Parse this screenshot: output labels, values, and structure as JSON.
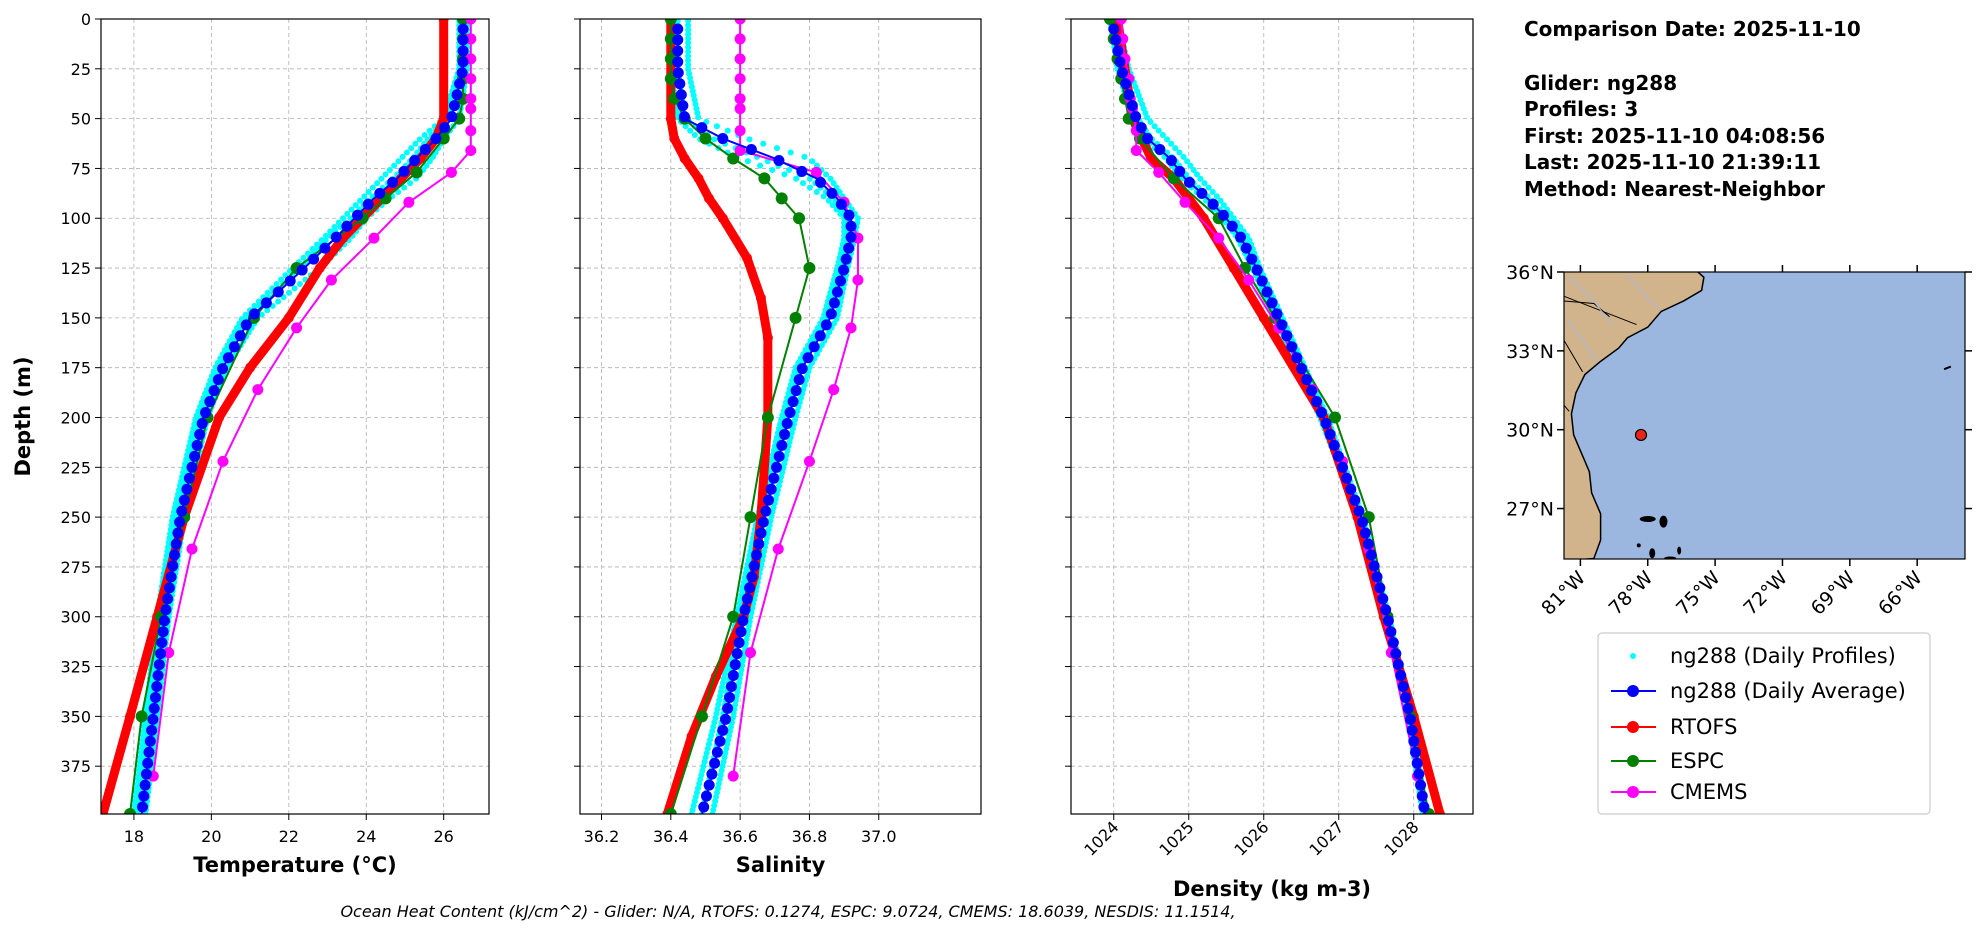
{
  "info": {
    "comparison_date": "Comparison Date: 2025-11-10",
    "glider": "Glider: ng288",
    "profiles": "Profiles: 3",
    "first": "First: 2025-11-10 04:08:56",
    "last": "Last: 2025-11-10 21:39:11",
    "method": "Method: Nearest-Neighbor"
  },
  "caption": "Ocean Heat Content (kJ/cm^2) - Glider: N/A,  RTOFS: 0.1274,  ESPC: 9.0724,  CMEMS: 18.6039,  NESDIS: 11.1514,",
  "legend": [
    {
      "label": "ng288 (Daily Profiles)",
      "color": "#00ffff",
      "style": "dots"
    },
    {
      "label": "ng288 (Daily Average)",
      "color": "#0000ff",
      "style": "line-marker"
    },
    {
      "label": "RTOFS",
      "color": "#ff0000",
      "style": "line-marker"
    },
    {
      "label": "ESPC",
      "color": "#008000",
      "style": "line-marker"
    },
    {
      "label": "CMEMS",
      "color": "#ff00ff",
      "style": "line-marker"
    }
  ],
  "map": {
    "lat_ticks": [
      {
        "v": 36,
        "label": "36°N"
      },
      {
        "v": 33,
        "label": "33°N"
      },
      {
        "v": 30,
        "label": "30°N"
      },
      {
        "v": 27,
        "label": "27°N"
      }
    ],
    "lon_ticks": [
      {
        "v": -81,
        "label": "81°W"
      },
      {
        "v": -78,
        "label": "78°W"
      },
      {
        "v": -75,
        "label": "75°W"
      },
      {
        "v": -72,
        "label": "72°W"
      },
      {
        "v": -69,
        "label": "69°W"
      },
      {
        "v": -66,
        "label": "66°W"
      }
    ],
    "lon_range": [
      -81.73,
      -63.87
    ],
    "lat_range": [
      25.08,
      36.0
    ],
    "glider_position": {
      "lon": -78.3,
      "lat": 29.8
    },
    "ocean_color": "#9bb7e0",
    "land_color": "#d2b48c",
    "marker_color": "#e8251c"
  },
  "chart_data": [
    {
      "type": "line",
      "id": "temperature",
      "xlabel": "Temperature (°C)",
      "ylabel": "Depth (m)",
      "xlim": [
        17.15,
        27.17
      ],
      "ylim": [
        399,
        0
      ],
      "xticks": [
        18,
        20,
        22,
        24,
        26
      ],
      "yticks": [
        0,
        25,
        50,
        75,
        100,
        125,
        150,
        175,
        200,
        225,
        250,
        275,
        300,
        325,
        350,
        375
      ],
      "grid": true,
      "profiles_depth": [
        0,
        25,
        50,
        60,
        70,
        80,
        90,
        100,
        110,
        125,
        150,
        175,
        200,
        250,
        300,
        350,
        399
      ],
      "profiles": [
        [
          26.6,
          26.6,
          26.4,
          26.0,
          25.7,
          25.3,
          24.6,
          24.0,
          23.6,
          22.8,
          21.2,
          20.4,
          19.9,
          19.3,
          18.9,
          18.6,
          18.3
        ],
        [
          26.5,
          26.5,
          26.1,
          25.6,
          25.2,
          24.7,
          24.1,
          23.6,
          23.0,
          22.3,
          20.9,
          20.2,
          19.7,
          19.1,
          18.7,
          18.4,
          18.1
        ],
        [
          26.4,
          26.4,
          26.0,
          25.4,
          24.9,
          24.4,
          23.9,
          23.4,
          22.9,
          22.1,
          20.8,
          20.1,
          19.6,
          19.0,
          18.6,
          18.3,
          18.0
        ]
      ],
      "series": [
        {
          "name": "ng288 (Daily Average)",
          "depth": [
            5,
            25,
            50,
            60,
            70,
            80,
            90,
            100,
            110,
            125,
            150,
            175,
            200,
            250,
            300,
            350,
            399
          ],
          "values": [
            26.5,
            26.5,
            26.2,
            25.8,
            25.3,
            24.8,
            24.2,
            23.7,
            23.2,
            22.4,
            21.0,
            20.3,
            19.8,
            19.2,
            18.8,
            18.5,
            18.2
          ]
        },
        {
          "name": "RTOFS",
          "depth": [
            0,
            50,
            60,
            70,
            80,
            90,
            100,
            110,
            125,
            150,
            175,
            200,
            250,
            300,
            350,
            399
          ],
          "values": [
            26.0,
            26.0,
            25.8,
            25.4,
            24.9,
            24.4,
            23.9,
            23.4,
            22.8,
            22.0,
            21.0,
            20.2,
            19.3,
            18.6,
            17.9,
            17.2
          ]
        },
        {
          "name": "ESPC",
          "depth": [
            0,
            10,
            20,
            30,
            40,
            50,
            60,
            77,
            90,
            100,
            125,
            150,
            200,
            250,
            300,
            350,
            399
          ],
          "values": [
            26.5,
            26.5,
            26.5,
            26.5,
            26.5,
            26.4,
            26.0,
            25.3,
            24.5,
            23.9,
            22.2,
            21.1,
            19.9,
            19.3,
            18.7,
            18.2,
            17.9
          ]
        },
        {
          "name": "CMEMS",
          "depth": [
            0,
            10,
            20,
            30,
            40,
            45,
            56,
            66,
            77,
            92,
            110,
            131,
            155,
            186,
            222,
            266,
            318,
            380
          ],
          "values": [
            26.7,
            26.7,
            26.7,
            26.7,
            26.7,
            26.7,
            26.7,
            26.7,
            26.2,
            25.1,
            24.2,
            23.1,
            22.2,
            21.2,
            20.3,
            19.5,
            18.9,
            18.5
          ]
        }
      ]
    },
    {
      "type": "line",
      "id": "salinity",
      "xlabel": "Salinity",
      "ylabel": "",
      "xlim": [
        36.138,
        37.295
      ],
      "ylim": [
        399,
        0
      ],
      "xticks": [
        36.2,
        36.4,
        36.6,
        36.8,
        37.0
      ],
      "xtick_labels": [
        "36.2",
        "36.4",
        "36.6",
        "36.8",
        "37.0"
      ],
      "yticks": [
        0,
        25,
        50,
        75,
        100,
        125,
        150,
        175,
        200,
        225,
        250,
        275,
        300,
        325,
        350,
        375
      ],
      "grid": true,
      "profiles_depth": [
        0,
        25,
        50,
        60,
        70,
        80,
        90,
        100,
        110,
        125,
        150,
        175,
        200,
        250,
        300,
        350,
        399
      ],
      "profiles": [
        [
          36.45,
          36.45,
          36.48,
          36.62,
          36.8,
          36.86,
          36.9,
          36.94,
          36.93,
          36.91,
          36.88,
          36.8,
          36.76,
          36.69,
          36.63,
          36.58,
          36.52
        ],
        [
          36.42,
          36.42,
          36.44,
          36.52,
          36.66,
          36.8,
          36.87,
          36.91,
          36.91,
          36.89,
          36.85,
          36.77,
          36.73,
          36.66,
          36.6,
          36.55,
          36.49
        ],
        [
          36.4,
          36.4,
          36.42,
          36.48,
          36.6,
          36.76,
          36.85,
          36.9,
          36.9,
          36.88,
          36.84,
          36.76,
          36.72,
          36.65,
          36.59,
          36.53,
          36.46
        ]
      ],
      "series": [
        {
          "name": "ng288 (Daily Average)",
          "depth": [
            5,
            25,
            50,
            60,
            70,
            80,
            90,
            100,
            110,
            125,
            150,
            175,
            200,
            250,
            300,
            350,
            399
          ],
          "values": [
            36.42,
            36.42,
            36.44,
            36.55,
            36.7,
            36.82,
            36.88,
            36.92,
            36.92,
            36.9,
            36.86,
            36.78,
            36.74,
            36.67,
            36.61,
            36.56,
            36.49
          ]
        },
        {
          "name": "RTOFS",
          "depth": [
            0,
            50,
            60,
            70,
            80,
            90,
            100,
            120,
            140,
            160,
            200,
            250,
            280,
            300,
            330,
            360,
            399
          ],
          "values": [
            36.4,
            36.4,
            36.41,
            36.44,
            36.48,
            36.51,
            36.55,
            36.62,
            36.66,
            36.68,
            36.68,
            36.66,
            36.64,
            36.61,
            36.53,
            36.46,
            36.39
          ]
        },
        {
          "name": "ESPC",
          "depth": [
            0,
            10,
            20,
            30,
            40,
            50,
            60,
            70,
            80,
            90,
            100,
            125,
            150,
            200,
            250,
            300,
            350,
            399
          ],
          "values": [
            36.4,
            36.4,
            36.4,
            36.4,
            36.41,
            36.44,
            36.5,
            36.58,
            36.67,
            36.72,
            36.77,
            36.8,
            36.76,
            36.68,
            36.63,
            36.58,
            36.49,
            36.4
          ]
        },
        {
          "name": "CMEMS",
          "depth": [
            0,
            10,
            20,
            30,
            40,
            45,
            56,
            66,
            77,
            92,
            110,
            131,
            155,
            186,
            222,
            266,
            318,
            380
          ],
          "values": [
            36.6,
            36.6,
            36.6,
            36.6,
            36.6,
            36.6,
            36.6,
            36.6,
            36.82,
            36.9,
            36.94,
            36.94,
            36.92,
            36.87,
            36.8,
            36.71,
            36.63,
            36.58
          ]
        }
      ]
    },
    {
      "type": "line",
      "id": "density",
      "xlabel": "Density (kg m-3)",
      "ylabel": "",
      "xlim": [
        1023.43,
        1028.79
      ],
      "ylim": [
        399,
        0
      ],
      "xticks": [
        1024,
        1025,
        1026,
        1027,
        1028
      ],
      "yticks": [
        0,
        25,
        50,
        75,
        100,
        125,
        150,
        175,
        200,
        225,
        250,
        275,
        300,
        325,
        350,
        375
      ],
      "grid": true,
      "profiles_depth": [
        0,
        25,
        50,
        60,
        70,
        80,
        90,
        100,
        110,
        125,
        150,
        175,
        200,
        250,
        300,
        350,
        399
      ],
      "profiles": [
        [
          1024.05,
          1024.2,
          1024.45,
          1024.7,
          1024.95,
          1025.15,
          1025.4,
          1025.6,
          1025.8,
          1025.95,
          1026.25,
          1026.55,
          1026.85,
          1027.32,
          1027.67,
          1027.97,
          1028.17
        ],
        [
          1024.0,
          1024.12,
          1024.32,
          1024.5,
          1024.8,
          1025.0,
          1025.28,
          1025.52,
          1025.72,
          1025.92,
          1026.22,
          1026.52,
          1026.82,
          1027.3,
          1027.65,
          1027.95,
          1028.15
        ],
        [
          1023.95,
          1024.05,
          1024.25,
          1024.4,
          1024.7,
          1024.9,
          1025.2,
          1025.45,
          1025.65,
          1025.85,
          1026.15,
          1026.45,
          1026.75,
          1027.27,
          1027.62,
          1027.92,
          1028.12
        ]
      ],
      "series": [
        {
          "name": "ng288 (Daily Average)",
          "depth": [
            5,
            25,
            50,
            60,
            70,
            80,
            90,
            100,
            110,
            125,
            150,
            175,
            200,
            250,
            300,
            350,
            399
          ],
          "values": [
            1024.0,
            1024.1,
            1024.3,
            1024.45,
            1024.75,
            1024.95,
            1025.25,
            1025.5,
            1025.7,
            1025.9,
            1026.2,
            1026.5,
            1026.8,
            1027.3,
            1027.65,
            1027.95,
            1028.15
          ]
        },
        {
          "name": "RTOFS",
          "depth": [
            0,
            50,
            70,
            80,
            100,
            125,
            150,
            200,
            250,
            300,
            350,
            399
          ],
          "values": [
            1024.05,
            1024.25,
            1024.5,
            1024.8,
            1025.2,
            1025.6,
            1026.0,
            1026.8,
            1027.25,
            1027.6,
            1028.0,
            1028.35
          ]
        },
        {
          "name": "ESPC",
          "depth": [
            0,
            10,
            20,
            30,
            40,
            50,
            60,
            80,
            100,
            125,
            150,
            200,
            250,
            300,
            350,
            399
          ],
          "values": [
            1023.95,
            1024.0,
            1024.05,
            1024.1,
            1024.15,
            1024.2,
            1024.35,
            1024.8,
            1025.4,
            1025.75,
            1026.15,
            1026.95,
            1027.4,
            1027.65,
            1027.95,
            1028.2
          ]
        },
        {
          "name": "CMEMS",
          "depth": [
            0,
            10,
            20,
            30,
            40,
            45,
            56,
            66,
            77,
            92,
            110,
            131,
            155,
            186,
            222,
            266,
            318,
            380
          ],
          "values": [
            1024.1,
            1024.12,
            1024.15,
            1024.2,
            1024.22,
            1024.25,
            1024.3,
            1024.3,
            1024.6,
            1024.95,
            1025.4,
            1025.8,
            1026.2,
            1026.65,
            1027.05,
            1027.4,
            1027.7,
            1028.05
          ]
        }
      ]
    }
  ]
}
